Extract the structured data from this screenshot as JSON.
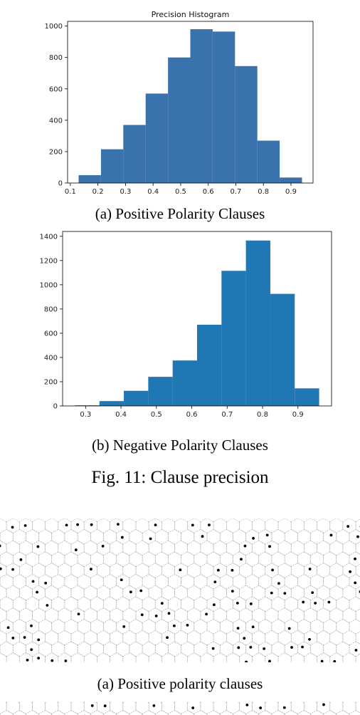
{
  "chart_data": [
    {
      "type": "bar",
      "title": "Precision Histogram",
      "bin_edges": [
        0.13,
        0.211,
        0.292,
        0.373,
        0.454,
        0.535,
        0.616,
        0.697,
        0.778,
        0.859,
        0.94
      ],
      "values": [
        50,
        215,
        370,
        570,
        800,
        980,
        965,
        745,
        270,
        35
      ],
      "xticks": [
        "0.1",
        "0.2",
        "0.3",
        "0.4",
        "0.5",
        "0.6",
        "0.7",
        "0.8",
        "0.9"
      ],
      "yticks": [
        "0",
        "200",
        "400",
        "600",
        "800",
        "1000"
      ],
      "xlim": [
        0.09,
        0.98
      ],
      "ylim": [
        0,
        1030
      ],
      "bar_color": "#3a72ad",
      "grid": false,
      "caption": "(a) Positive Polarity Clauses"
    },
    {
      "type": "bar",
      "title": "",
      "bin_edges": [
        0.27,
        0.339,
        0.408,
        0.477,
        0.546,
        0.615,
        0.684,
        0.753,
        0.822,
        0.891,
        0.96
      ],
      "values": [
        5,
        40,
        125,
        240,
        375,
        670,
        1115,
        1365,
        925,
        145
      ],
      "xticks": [
        "0.3",
        "0.4",
        "0.5",
        "0.6",
        "0.7",
        "0.8",
        "0.9"
      ],
      "yticks": [
        "0",
        "200",
        "400",
        "600",
        "800",
        "1000",
        "1200",
        "1400"
      ],
      "xlim": [
        0.235,
        0.995
      ],
      "ylim": [
        0,
        1440
      ],
      "bar_color": "#1f77b4",
      "grid": false,
      "caption": "(b) Negative Polarity Clauses"
    }
  ],
  "figure_caption": "Fig. 11: Clause precision",
  "hex_figure": {
    "caption": "(a) Positive polarity clauses",
    "stroke_color": "#9a9a9a",
    "dot_color": "#000000"
  }
}
